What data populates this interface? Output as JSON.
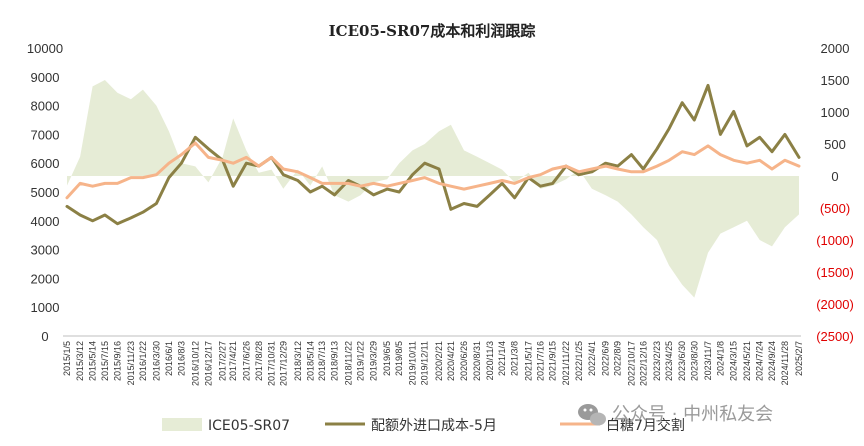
{
  "chart_data": {
    "type": "line",
    "title": "ICE05-SR07成本和利润跟踪",
    "xlabel": "",
    "ylabel": "",
    "left_axis": {
      "min": 0,
      "max": 10000,
      "step": 1000,
      "tick_labels": [
        "0",
        "1000",
        "2000",
        "3000",
        "4000",
        "5000",
        "6000",
        "7000",
        "8000",
        "9000",
        "10000"
      ]
    },
    "right_axis": {
      "min": -2500,
      "max": 2000,
      "step": 500,
      "tick_labels": [
        "(2500)",
        "(2000)",
        "(1500)",
        "(1000)",
        "(500)",
        "0",
        "500",
        "1000",
        "1500",
        "2000"
      ],
      "negative_color": "#e00000",
      "positive_color": "#333333"
    },
    "x_tick_labels": [
      "2015/1/5",
      "2015/3/12",
      "2015/5/14",
      "2015/7/15",
      "2015/9/16",
      "2015/11/23",
      "2016/1/22",
      "2016/3/30",
      "2016/6/1",
      "2016/8/3",
      "2016/10/12",
      "2016/12/17",
      "2017/2/27",
      "2017/4/21",
      "2017/6/26",
      "2017/8/28",
      "2017/10/31",
      "2017/12/29",
      "2018/3/12",
      "2018/5/14",
      "2018/7/13",
      "2018/9/13",
      "2018/11/22",
      "2019/1/22",
      "2019/3/29",
      "2019/6/5",
      "2019/8/5",
      "2019/10/11",
      "2019/12/11",
      "2020/2/21",
      "2020/4/21",
      "2020/6/26",
      "2020/8/31",
      "2020/11/3",
      "2021/1/4",
      "2021/3/8",
      "2021/5/17",
      "2021/7/16",
      "2021/9/15",
      "2021/11/22",
      "2022/1/25",
      "2022/4/1",
      "2022/6/9",
      "2022/8/9",
      "2022/10/17",
      "2022/12/16",
      "2023/2/23",
      "2023/4/25",
      "2023/6/30",
      "2023/8/30",
      "2023/11/7",
      "2024/1/8",
      "2024/3/15",
      "2024/5/21",
      "2024/7/24",
      "2024/9/24",
      "2024/11/28",
      "2025/2/7"
    ],
    "x_dates": [
      "2015/1/5",
      "2015/3/12",
      "2015/5/14",
      "2015/7/15",
      "2015/9/16",
      "2015/11/23",
      "2016/1/22",
      "2016/3/30",
      "2016/6/1",
      "2016/8/3",
      "2016/10/12",
      "2016/12/17",
      "2017/2/27",
      "2017/4/21",
      "2017/6/26",
      "2017/8/28",
      "2017/10/31",
      "2017/12/29",
      "2018/3/12",
      "2018/5/14",
      "2018/7/13",
      "2018/9/13",
      "2018/11/22",
      "2019/1/22",
      "2019/3/29",
      "2019/6/5",
      "2019/8/5",
      "2019/10/11",
      "2019/12/11",
      "2020/2/21",
      "2020/4/21",
      "2020/6/26",
      "2020/8/31",
      "2020/11/3",
      "2021/1/4",
      "2021/3/8",
      "2021/5/17",
      "2021/7/16",
      "2021/9/15",
      "2021/11/22",
      "2022/1/25",
      "2022/4/1",
      "2022/6/9",
      "2022/8/9",
      "2022/10/17",
      "2022/12/16",
      "2023/2/23",
      "2023/4/25",
      "2023/6/30",
      "2023/8/30",
      "2023/11/7",
      "2024/1/8",
      "2024/3/15",
      "2024/5/21",
      "2024/7/24",
      "2024/9/24",
      "2024/11/28",
      "2025/2/7"
    ],
    "series": [
      {
        "name": "ICE05-SR07",
        "type": "area",
        "axis": "right",
        "color": "#e6ecd6",
        "values": [
          -150,
          300,
          1400,
          1500,
          1300,
          1200,
          1350,
          1100,
          700,
          200,
          150,
          -100,
          300,
          900,
          400,
          50,
          100,
          -200,
          100,
          -150,
          150,
          -300,
          -400,
          -300,
          -100,
          -50,
          200,
          400,
          500,
          700,
          800,
          400,
          300,
          200,
          100,
          -100,
          50,
          -200,
          -150,
          -50,
          100,
          -200,
          -300,
          -400,
          -600,
          -800,
          -1000,
          -1400,
          -1700,
          -1900,
          -1200,
          -900,
          -800,
          -700,
          -1000,
          -1100,
          -800,
          -600
        ]
      },
      {
        "name": "配额外进口成本-5月",
        "type": "line",
        "axis": "left",
        "color": "#8b8045",
        "values": [
          4500,
          4200,
          4000,
          4200,
          3900,
          4100,
          4300,
          4600,
          5500,
          6000,
          6900,
          6500,
          6100,
          5200,
          6000,
          5900,
          6200,
          5600,
          5400,
          5000,
          5200,
          4900,
          5400,
          5200,
          4900,
          5100,
          5000,
          5600,
          6000,
          5800,
          4400,
          4600,
          4500,
          4900,
          5300,
          4800,
          5500,
          5200,
          5300,
          5900,
          5600,
          5700,
          6000,
          5900,
          6300,
          5800,
          6500,
          7200,
          8100,
          7500,
          8700,
          7000,
          7800,
          6600,
          6900,
          6400,
          7000,
          6200
        ]
      },
      {
        "name": "白糖7月交割",
        "type": "line",
        "axis": "left",
        "color": "#f6b48a",
        "values": [
          4800,
          5300,
          5200,
          5300,
          5300,
          5500,
          5500,
          5600,
          6000,
          6300,
          6700,
          6200,
          6100,
          6000,
          6200,
          5900,
          6200,
          5800,
          5700,
          5500,
          5300,
          5300,
          5300,
          5200,
          5300,
          5200,
          5300,
          5400,
          5500,
          5300,
          5200,
          5100,
          5200,
          5300,
          5400,
          5300,
          5500,
          5600,
          5800,
          5900,
          5700,
          5800,
          5900,
          5800,
          5700,
          5700,
          5900,
          6100,
          6400,
          6300,
          6600,
          6300,
          6100,
          6000,
          6100,
          5800,
          6100,
          5900
        ]
      }
    ],
    "legend": {
      "position": "bottom",
      "entries": [
        "ICE05-SR07",
        "配额外进口成本-5月",
        "白糖7月交割"
      ]
    },
    "grid": false
  },
  "watermark": {
    "text": "公众号 · 中州私友会",
    "icon": "wechat-icon"
  }
}
